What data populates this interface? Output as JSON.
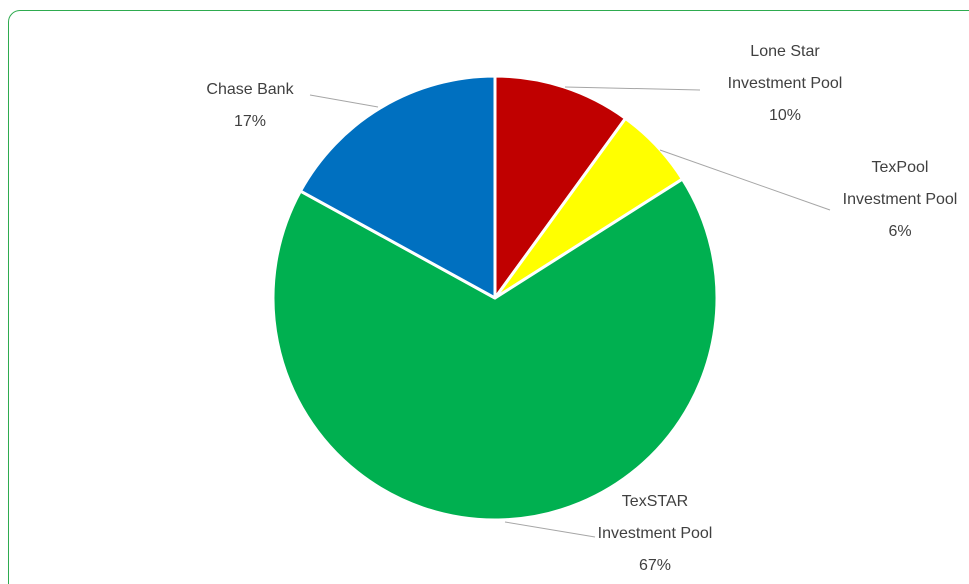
{
  "chart_data": {
    "type": "pie",
    "categories": [
      "Lone Star Investment Pool",
      "TexPool Investment Pool",
      "TexSTAR Investment Pool",
      "Chase Bank"
    ],
    "values": [
      10,
      6,
      67,
      17
    ],
    "value_labels": [
      "10%",
      "6%",
      "67%",
      "17%"
    ],
    "colors": [
      "#c00000",
      "#ffff00",
      "#00b050",
      "#0070c0"
    ]
  }
}
